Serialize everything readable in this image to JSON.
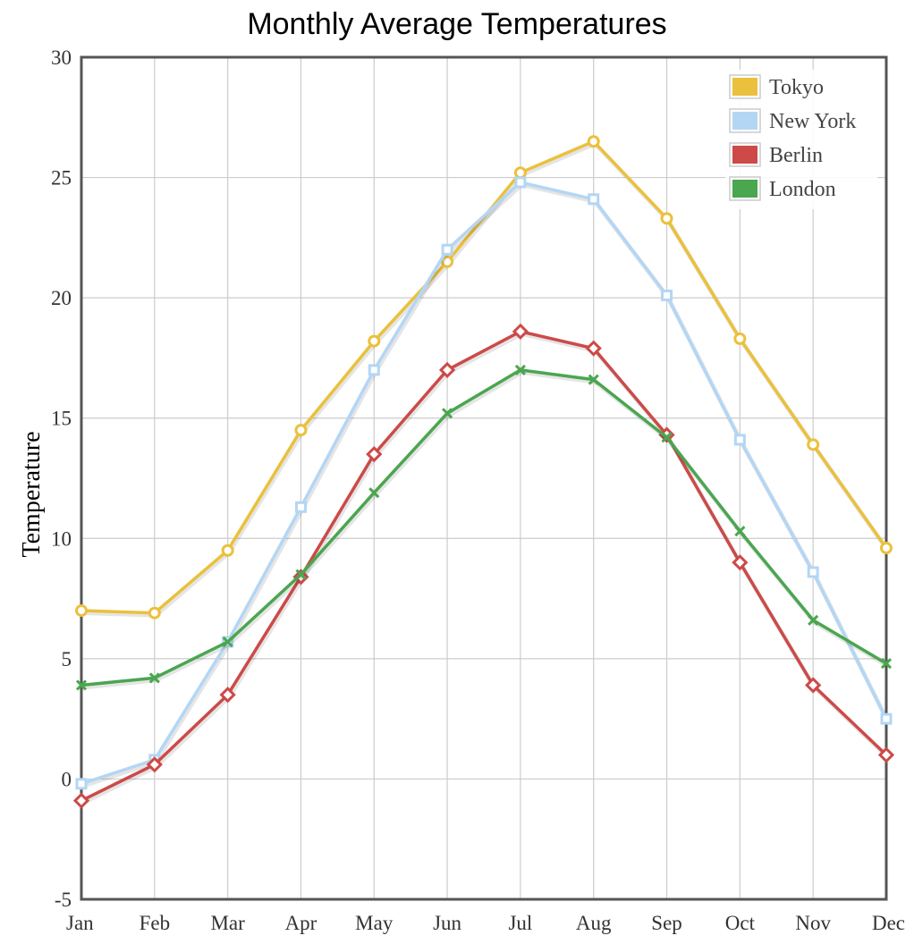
{
  "chart_data": {
    "type": "line",
    "title": "Monthly Average Temperatures",
    "xlabel": "",
    "ylabel": "Temperature",
    "categories": [
      "Jan",
      "Feb",
      "Mar",
      "Apr",
      "May",
      "Jun",
      "Jul",
      "Aug",
      "Sep",
      "Oct",
      "Nov",
      "Dec"
    ],
    "ylim": [
      -5,
      30
    ],
    "yticks": [
      "-5",
      "0",
      "5",
      "10",
      "15",
      "20",
      "25",
      "30"
    ],
    "grid": true,
    "legend": "top-right",
    "series": [
      {
        "name": "Tokyo",
        "color": "#ebc03c",
        "marker": "circle",
        "values": [
          7.0,
          6.9,
          9.5,
          14.5,
          18.2,
          21.5,
          25.2,
          26.5,
          23.3,
          18.3,
          13.9,
          9.6
        ]
      },
      {
        "name": "New York",
        "color": "#b3d6f5",
        "marker": "square",
        "values": [
          -0.2,
          0.8,
          5.7,
          11.3,
          17.0,
          22.0,
          24.8,
          24.1,
          20.1,
          14.1,
          8.6,
          2.5
        ]
      },
      {
        "name": "Berlin",
        "color": "#cc4a48",
        "marker": "diamond",
        "values": [
          -0.9,
          0.6,
          3.5,
          8.4,
          13.5,
          17.0,
          18.6,
          17.9,
          14.3,
          9.0,
          3.9,
          1.0
        ]
      },
      {
        "name": "London",
        "color": "#4aa64f",
        "marker": "cross",
        "values": [
          3.9,
          4.2,
          5.7,
          8.5,
          11.9,
          15.2,
          17.0,
          16.6,
          14.2,
          10.3,
          6.6,
          4.8
        ]
      }
    ]
  }
}
